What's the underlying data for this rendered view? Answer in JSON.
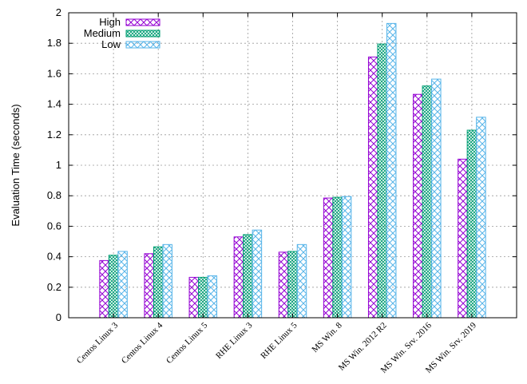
{
  "chart_data": {
    "type": "bar",
    "title": "",
    "xlabel": "",
    "ylabel": "Evaluation Time (seconds)",
    "ylim": [
      0,
      2
    ],
    "yticks": [
      "0",
      "0.2",
      "0.4",
      "0.6",
      "0.8",
      "1",
      "1.2",
      "1.4",
      "1.6",
      "1.8",
      "2"
    ],
    "grid": true,
    "legend": "top-left",
    "categories": [
      "Centos Linux 3",
      "Centos Linux 4",
      "Centos Linux 5",
      "RHE Linux 3",
      "RHE Linux 5",
      "MS Win. 8",
      "MS Win. 2012 R2",
      "MS Win. Srv. 2016",
      "MS Win. Srv. 2019"
    ],
    "series": [
      {
        "name": "High",
        "color": "#9400d3",
        "pattern": "diagonal-crosshatch",
        "values": [
          0.375,
          0.42,
          0.265,
          0.53,
          0.43,
          0.785,
          1.71,
          1.465,
          1.04
        ]
      },
      {
        "name": "Medium",
        "color": "#009e73",
        "pattern": "dense-crosshatch",
        "values": [
          0.41,
          0.465,
          0.265,
          0.545,
          0.435,
          0.79,
          1.795,
          1.52,
          1.23
        ]
      },
      {
        "name": "Low",
        "color": "#56b4e9",
        "pattern": "crosshatch",
        "values": [
          0.435,
          0.48,
          0.275,
          0.575,
          0.48,
          0.795,
          1.93,
          1.565,
          1.315
        ]
      }
    ]
  }
}
